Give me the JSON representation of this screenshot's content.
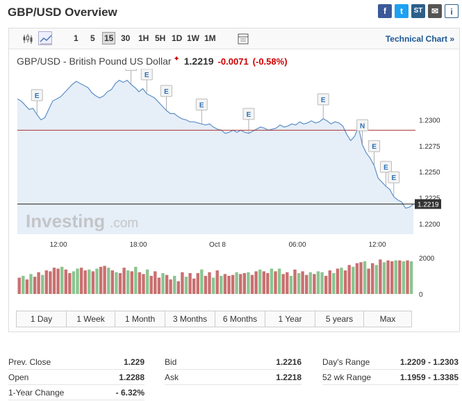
{
  "header": {
    "title": "GBP/USD Overview",
    "share": [
      {
        "icon": "facebook-icon",
        "label": "f"
      },
      {
        "icon": "twitter-icon",
        "label": "t"
      },
      {
        "icon": "stocktwits-icon",
        "label": "ST"
      },
      {
        "icon": "mail-icon",
        "label": "✉"
      },
      {
        "icon": "info-icon",
        "label": "i"
      }
    ]
  },
  "toolbar": {
    "timeframes": [
      "1",
      "5",
      "15",
      "30",
      "1H",
      "5H",
      "1D",
      "1W",
      "1M"
    ],
    "active_timeframe": "15",
    "technical_link": "Technical Chart »"
  },
  "quote": {
    "instrument": "GBP/USD - British Pound US Dollar",
    "last": "1.2219",
    "change": "-0.0071",
    "change_pct": "(-0.58%)"
  },
  "chart_data": {
    "type": "area",
    "x_ticks": [
      "12:00",
      "18:00",
      "Oct 8",
      "06:00",
      "12:00"
    ],
    "y_ticks": [
      "1.2300",
      "1.2275",
      "1.2250",
      "1.2225",
      "1.2200"
    ],
    "ylim": [
      1.219,
      1.2345
    ],
    "last_price_label": "1.2219",
    "reference_line": 1.229,
    "current_line": 1.2219,
    "prices": [
      1.232,
      1.2318,
      1.2314,
      1.231,
      1.2311,
      1.2305,
      1.23,
      1.2302,
      1.231,
      1.2318,
      1.232,
      1.2322,
      1.2326,
      1.233,
      1.2334,
      1.2337,
      1.2335,
      1.2333,
      1.2331,
      1.2326,
      1.2323,
      1.2321,
      1.2323,
      1.2327,
      1.2329,
      1.2335,
      1.2338,
      1.2336,
      1.2338,
      1.2334,
      1.2331,
      1.2327,
      1.233,
      1.2325,
      1.2323,
      1.2321,
      1.2317,
      1.2313,
      1.2309,
      1.2306,
      1.2306,
      1.2303,
      1.2301,
      1.23,
      1.2298,
      1.2298,
      1.2297,
      1.2296,
      1.2295,
      1.2296,
      1.2293,
      1.2291,
      1.229,
      1.2287,
      1.2288,
      1.229,
      1.2288,
      1.229,
      1.2288,
      1.2287,
      1.2289,
      1.2291,
      1.2293,
      1.2292,
      1.229,
      1.2291,
      1.2292,
      1.2295,
      1.2293,
      1.2294,
      1.2296,
      1.2295,
      1.2298,
      1.2296,
      1.2297,
      1.2299,
      1.2297,
      1.2298,
      1.2301,
      1.2299,
      1.2296,
      1.2298,
      1.2297,
      1.2294,
      1.2286,
      1.228,
      1.2284,
      1.2293,
      1.2276,
      1.2268,
      1.2263,
      1.2256,
      1.2244,
      1.224,
      1.2236,
      1.2233,
      1.2226,
      1.2223,
      1.2221,
      1.2215,
      1.2216,
      1.2219
    ],
    "events": [
      {
        "label": "E",
        "index": 5
      },
      {
        "label": "E",
        "index": 29
      },
      {
        "label": "E",
        "index": 33
      },
      {
        "label": "E",
        "index": 38
      },
      {
        "label": "E",
        "index": 47
      },
      {
        "label": "E",
        "index": 59
      },
      {
        "label": "E",
        "index": 78
      },
      {
        "label": "N",
        "index": 88
      },
      {
        "label": "E",
        "index": 91
      },
      {
        "label": "E",
        "index": 94
      },
      {
        "label": "E",
        "index": 96
      }
    ],
    "volume_ticks": [
      "2000",
      "0"
    ],
    "volume_max": 2300,
    "volumes": [
      900,
      1000,
      800,
      1100,
      950,
      1200,
      1050,
      1300,
      1250,
      1450,
      1400,
      1500,
      1350,
      1150,
      1250,
      1400,
      1450,
      1300,
      1350,
      1250,
      1400,
      1500,
      1550,
      1450,
      1300,
      1200,
      1150,
      1450,
      1300,
      1250,
      1500,
      1200,
      1100,
      1350,
      1000,
      1250,
      900,
      1150,
      1050,
      800,
      1000,
      700,
      1200,
      950,
      1150,
      850,
      1150,
      1350,
      1000,
      1200,
      900,
      1300,
      1000,
      1100,
      1000,
      1050,
      1200,
      1100,
      1150,
      1200,
      1050,
      1250,
      1350,
      1250,
      1150,
      1400,
      1250,
      1400,
      1100,
      1200,
      1000,
      1350,
      1150,
      1250,
      1050,
      1200,
      1100,
      1250,
      1200,
      1000,
      1300,
      1150,
      1400,
      1450,
      1300,
      1600,
      1500,
      1700,
      1750,
      1800,
      1400,
      1700,
      1600,
      1900,
      1750,
      1850,
      1800,
      1850,
      1850,
      1800,
      1850,
      1800
    ],
    "volume_up": [
      false,
      true,
      false,
      true,
      false,
      false,
      true,
      false,
      false,
      false,
      false,
      true,
      false,
      false,
      true,
      true,
      false,
      false,
      true,
      false,
      true,
      false,
      false,
      true,
      false,
      true,
      false,
      false,
      true,
      false,
      true,
      false,
      false,
      true,
      false,
      false,
      false,
      true,
      false,
      false,
      true,
      false,
      false,
      true,
      false,
      false,
      false,
      true,
      false,
      false,
      true,
      false,
      true,
      false,
      false,
      false,
      true,
      false,
      false,
      true,
      false,
      false,
      true,
      false,
      false,
      true,
      false,
      true,
      false,
      false,
      true,
      false,
      true,
      false,
      false,
      true,
      false,
      true,
      true,
      false,
      false,
      true,
      false,
      true,
      false,
      false,
      true,
      false,
      false,
      true,
      false,
      false,
      true,
      false,
      true,
      false,
      false,
      true,
      false,
      true,
      false,
      true
    ],
    "colors": {
      "area_fill": "#e6eef8",
      "area_line": "#5b8fc7",
      "ref_line": "#a33",
      "vol_up": "#8cc490",
      "vol_down": "#c97070"
    }
  },
  "ranges": [
    "1 Day",
    "1 Week",
    "1 Month",
    "3 Months",
    "6 Months",
    "1 Year",
    "5 years",
    "Max"
  ],
  "stats": {
    "prev_close": {
      "label": "Prev. Close",
      "value": "1.229"
    },
    "open": {
      "label": "Open",
      "value": "1.2288"
    },
    "year_change": {
      "label": "1-Year Change",
      "value": "- 6.32%"
    },
    "bid": {
      "label": "Bid",
      "value": "1.2216"
    },
    "ask": {
      "label": "Ask",
      "value": "1.2218"
    },
    "days_range": {
      "label": "Day's Range",
      "value": "1.2209 - 1.2303"
    },
    "wk52_range": {
      "label": "52 wk Range",
      "value": "1.1959 - 1.3385"
    }
  }
}
